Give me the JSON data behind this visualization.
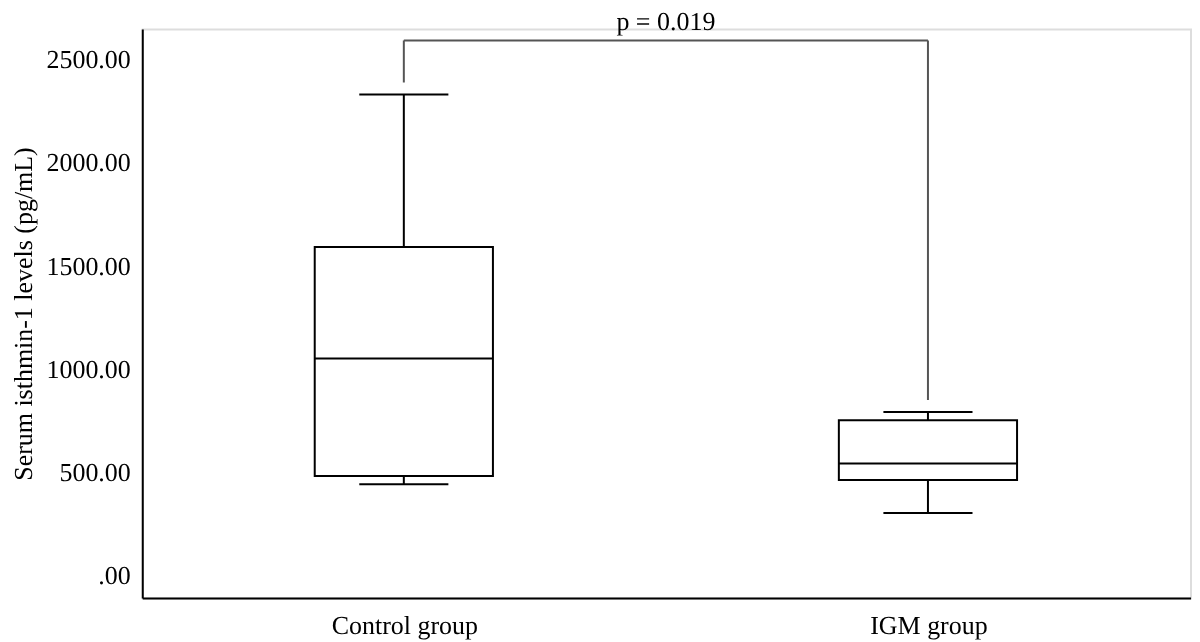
{
  "chart_data": {
    "type": "box",
    "ylabel": "Serum isthmin-1 levels (pg/mL)",
    "categories": [
      "Control group",
      "IGM group"
    ],
    "boxes": [
      {
        "low": 440,
        "q1": 480,
        "median": 1050,
        "q3": 1590,
        "high": 2330
      },
      {
        "low": 300,
        "q1": 460,
        "median": 540,
        "q3": 750,
        "high": 790
      }
    ],
    "ylim": [
      -110,
      2650
    ],
    "yticks": [
      {
        "value": 0,
        "label": ".00"
      },
      {
        "value": 500,
        "label": "500.00"
      },
      {
        "value": 1000,
        "label": "1000.00"
      },
      {
        "value": 1500,
        "label": "1500.00"
      },
      {
        "value": 2000,
        "label": "2000.00"
      },
      {
        "value": 2500,
        "label": "2500.00"
      }
    ],
    "annotations": [
      "p = 0.019"
    ],
    "grid": false
  }
}
